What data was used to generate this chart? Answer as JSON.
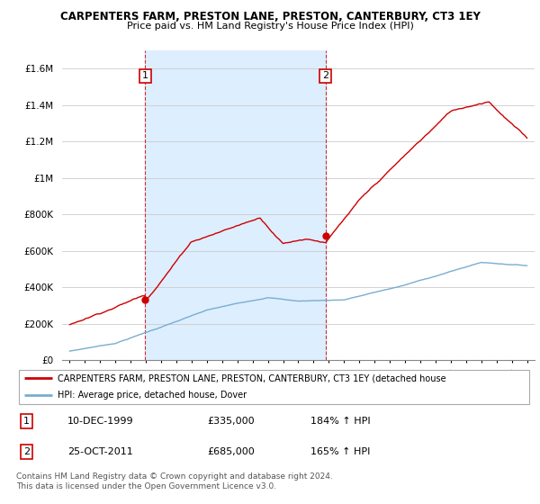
{
  "title": "CARPENTERS FARM, PRESTON LANE, PRESTON, CANTERBURY, CT3 1EY",
  "subtitle": "Price paid vs. HM Land Registry's House Price Index (HPI)",
  "legend_line1": "CARPENTERS FARM, PRESTON LANE, PRESTON, CANTERBURY, CT3 1EY (detached house",
  "legend_line2": "HPI: Average price, detached house, Dover",
  "sale1_date": "10-DEC-1999",
  "sale1_price": 335000,
  "sale1_hpi": "184% ↑ HPI",
  "sale2_date": "25-OCT-2011",
  "sale2_price": 685000,
  "sale2_hpi": "165% ↑ HPI",
  "footer": "Contains HM Land Registry data © Crown copyright and database right 2024.\nThis data is licensed under the Open Government Licence v3.0.",
  "red_color": "#cc0000",
  "blue_color": "#7aadcf",
  "shade_color": "#ddeeff",
  "ylim": [
    0,
    1700000
  ],
  "yticks": [
    0,
    200000,
    400000,
    600000,
    800000,
    1000000,
    1200000,
    1400000,
    1600000
  ],
  "sale1_x": 1999.95,
  "sale2_x": 2011.79
}
